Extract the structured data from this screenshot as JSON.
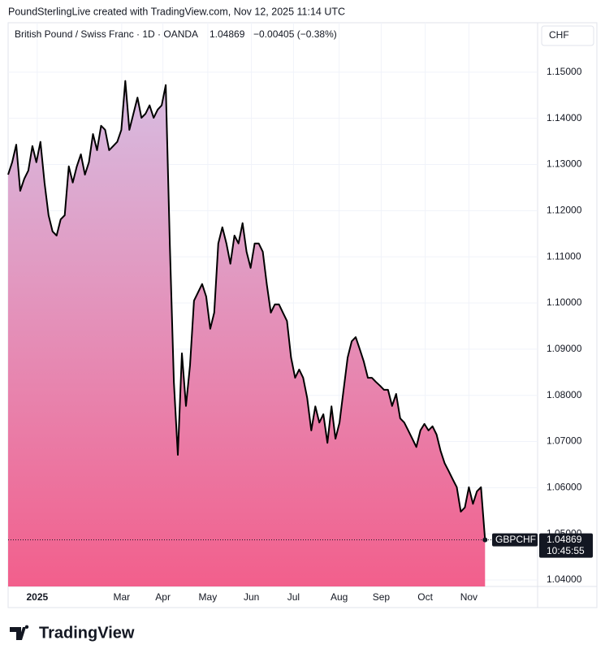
{
  "header": "PoundSterlingLive created with TradingView.com, Nov 12, 2025 11:14 UTC",
  "logo": "TradingView",
  "chart_data": {
    "type": "area",
    "title": "British Pound / Swiss Franc · 1D · OANDA",
    "change": "−0.00405 (−0.38%)",
    "currency": "CHF",
    "symbol": "GBPCHF",
    "countdown": "10:45:55",
    "line_color": "#000000",
    "fill_top": "#d7bde2",
    "fill_bottom": "#f25f8c",
    "grid": true,
    "values": [
      1.1278,
      1.1305,
      1.1343,
      1.1243,
      1.1269,
      1.1287,
      1.134,
      1.1305,
      1.1349,
      1.1261,
      1.119,
      1.1155,
      1.1146,
      1.1181,
      1.119,
      1.1296,
      1.1261,
      1.1296,
      1.1322,
      1.1278,
      1.1305,
      1.1366,
      1.1331,
      1.1384,
      1.1375,
      1.1331,
      1.134,
      1.1349,
      1.1375,
      1.1481,
      1.1375,
      1.141,
      1.1445,
      1.1401,
      1.141,
      1.1428,
      1.1401,
      1.1419,
      1.1428,
      1.1472,
      1.1129,
      1.0829,
      1.0671,
      1.0891,
      1.0777,
      1.0865,
      1.1005,
      1.1023,
      1.1041,
      1.1014,
      1.0944,
      1.0979,
      1.1129,
      1.1164,
      1.1129,
      1.1085,
      1.1146,
      1.1129,
      1.1173,
      1.1111,
      1.1076,
      1.1129,
      1.1129,
      1.1111,
      1.1041,
      1.0979,
      1.0997,
      1.0997,
      1.0979,
      1.0961,
      1.0882,
      1.0838,
      1.0856,
      1.0838,
      1.0794,
      1.0724,
      1.0776,
      1.0741,
      1.0759,
      1.0697,
      1.0776,
      1.0706,
      1.0741,
      1.0812,
      1.0882,
      1.0917,
      1.0926,
      1.09,
      1.0873,
      1.0838,
      1.0838,
      1.0829,
      1.0821,
      1.0812,
      1.0812,
      1.0777,
      1.0803,
      1.075,
      1.0741,
      1.0724,
      1.0706,
      1.0688,
      1.0724,
      1.0738,
      1.0724,
      1.0733,
      1.0715,
      1.068,
      1.0653,
      1.0636,
      1.0618,
      1.0601,
      1.0548,
      1.0557,
      1.0601,
      1.0565,
      1.0592,
      1.0601,
      1.04869
    ],
    "xlim": [
      0,
      131
    ],
    "xticks": [
      {
        "value": 7.2,
        "label": "2025"
      },
      {
        "value": 28.1,
        "label": "Mar"
      },
      {
        "value": 38.3,
        "label": "Apr"
      },
      {
        "value": 49.4,
        "label": "May"
      },
      {
        "value": 60.2,
        "label": "Jun"
      },
      {
        "value": 70.6,
        "label": "Jul"
      },
      {
        "value": 81.9,
        "label": "Aug"
      },
      {
        "value": 92.3,
        "label": "Sep"
      },
      {
        "value": 103.2,
        "label": "Oct"
      },
      {
        "value": 114,
        "label": "Nov"
      }
    ],
    "ylim": [
      1.0386,
      1.1607
    ],
    "yticks": [
      {
        "value": 1.04,
        "label": "1.04000"
      },
      {
        "value": 1.05,
        "label": "1.05000"
      },
      {
        "value": 1.06,
        "label": "1.06000"
      },
      {
        "value": 1.07,
        "label": "1.07000"
      },
      {
        "value": 1.08,
        "label": "1.08000"
      },
      {
        "value": 1.09,
        "label": "1.09000"
      },
      {
        "value": 1.1,
        "label": "1.10000"
      },
      {
        "value": 1.11,
        "label": "1.11000"
      },
      {
        "value": 1.12,
        "label": "1.12000"
      },
      {
        "value": 1.13,
        "label": "1.13000"
      },
      {
        "value": 1.14,
        "label": "1.14000"
      },
      {
        "value": 1.15,
        "label": "1.15000"
      }
    ]
  }
}
